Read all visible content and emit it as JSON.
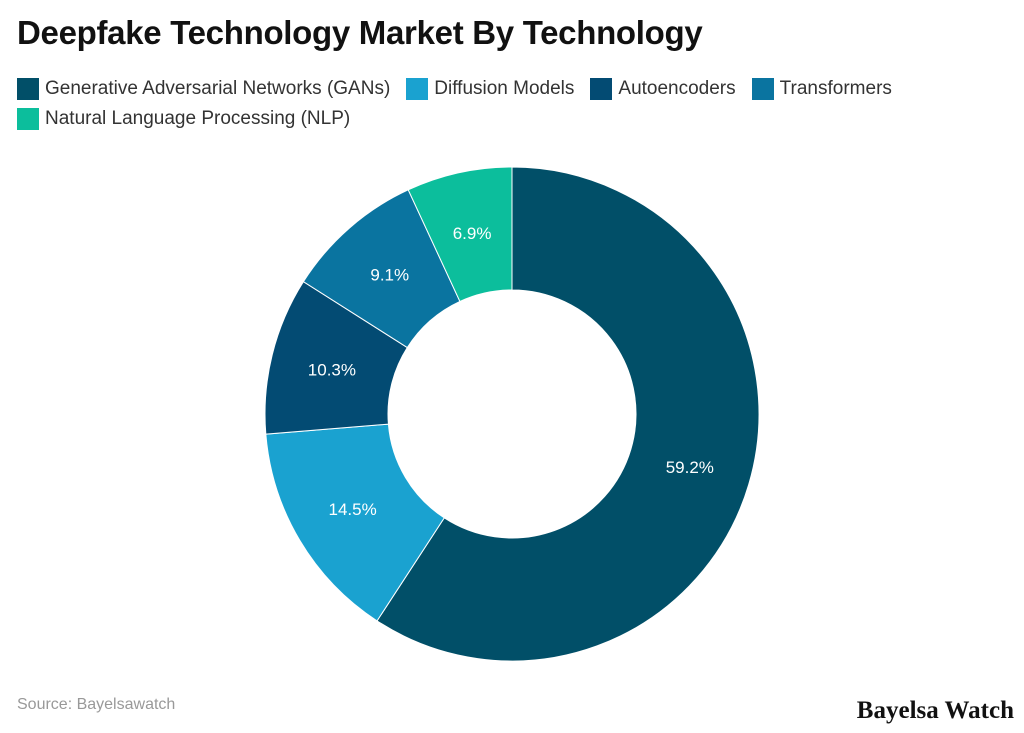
{
  "chart_data": {
    "type": "pie",
    "title": "Deepfake Technology Market By Technology",
    "categories": [
      "Generative Adversarial Networks (GANs)",
      "Diffusion Models",
      "Autoencoders",
      "Transformers",
      "Natural Language Processing (NLP)"
    ],
    "values": [
      59.2,
      14.5,
      10.3,
      9.1,
      6.9
    ],
    "labels": [
      "59.2%",
      "14.5%",
      "10.3%",
      "9.1%",
      "6.9%"
    ],
    "colors": [
      "#014f68",
      "#1aa2d0",
      "#034b73",
      "#0a74a0",
      "#0cbe9c"
    ],
    "donut": true,
    "legend": "top-left"
  },
  "source": "Source: Bayelsawatch",
  "brand": "Bayelsa Watch"
}
